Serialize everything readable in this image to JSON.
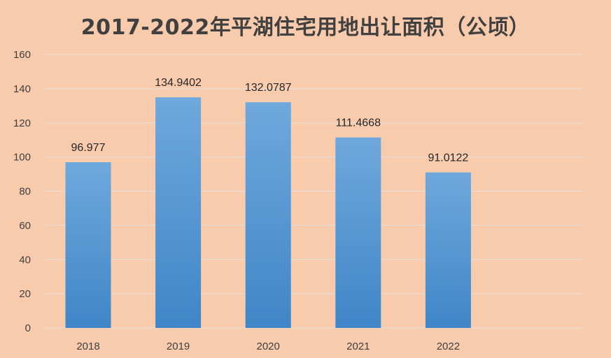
{
  "chart_data": {
    "type": "bar",
    "title": "2017-2022年平湖住宅用地出让面积（公顷）",
    "categories": [
      "2018",
      "2019",
      "2020",
      "2021",
      "2022"
    ],
    "values": [
      96.977,
      134.9402,
      132.0787,
      111.4668,
      91.0122
    ],
    "data_labels": [
      "96.977",
      "134.9402",
      "132.0787",
      "111.4668",
      "91.0122"
    ],
    "y_ticks": [
      0,
      20,
      40,
      60,
      80,
      100,
      120,
      140,
      160
    ],
    "ylim": [
      0,
      160
    ],
    "grid": true,
    "legend": "none",
    "colors": {
      "background": "#f8cbad",
      "bar_top": "#6fa8dc",
      "bar_bottom": "#3f86c8",
      "grid": "#e9dcd3",
      "text": "#404040"
    }
  }
}
